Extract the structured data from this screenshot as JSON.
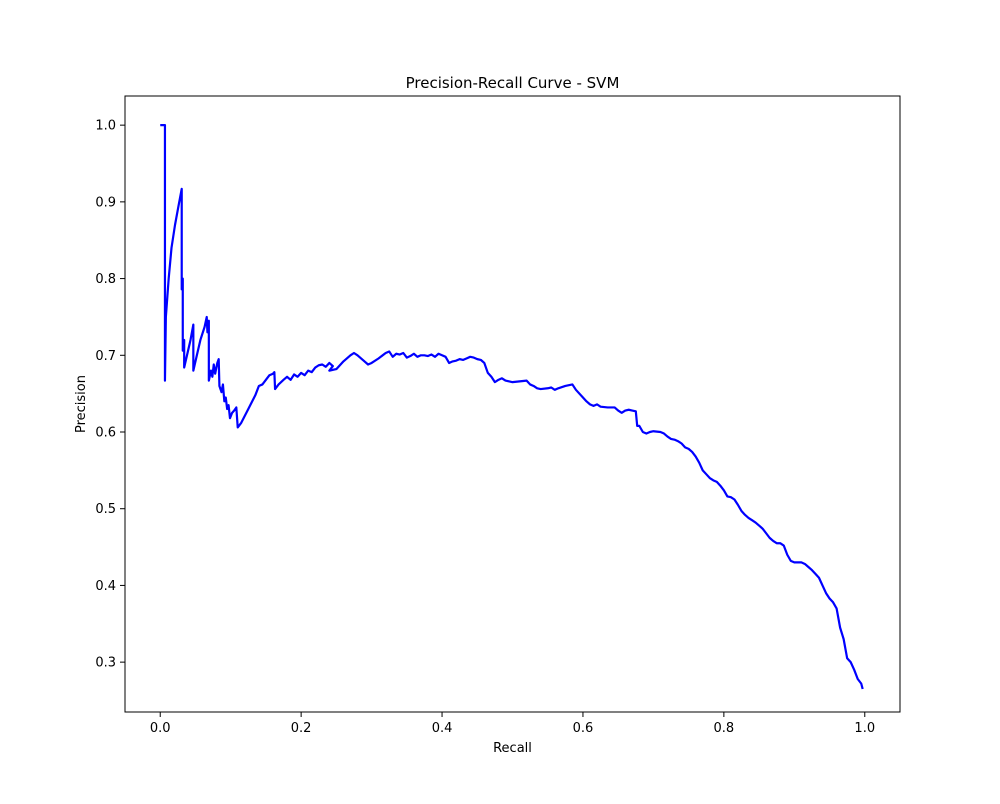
{
  "chart_data": {
    "type": "line",
    "title": "Precision-Recall Curve - SVM",
    "xlabel": "Recall",
    "ylabel": "Precision",
    "xlim": [
      -0.05,
      1.05
    ],
    "ylim": [
      0.235,
      1.038
    ],
    "xticks": [
      0.0,
      0.2,
      0.4,
      0.6,
      0.8,
      1.0
    ],
    "xtick_labels": [
      "0.0",
      "0.2",
      "0.4",
      "0.6",
      "0.8",
      "1.0"
    ],
    "yticks": [
      0.3,
      0.4,
      0.5,
      0.6,
      0.7,
      0.8,
      0.9,
      1.0
    ],
    "ytick_labels": [
      "0.3",
      "0.4",
      "0.5",
      "0.6",
      "0.7",
      "0.8",
      "0.9",
      "1.0"
    ],
    "grid": false,
    "legend": null,
    "series": [
      {
        "color": "#0000ff",
        "points": [
          [
            0.0,
            1.0
          ],
          [
            0.0067,
            1.0
          ],
          [
            0.0067,
            0.667
          ],
          [
            0.008,
            0.75
          ],
          [
            0.012,
            0.8
          ],
          [
            0.016,
            0.84
          ],
          [
            0.021,
            0.87
          ],
          [
            0.026,
            0.895
          ],
          [
            0.0305,
            0.917
          ],
          [
            0.0305,
            0.786
          ],
          [
            0.032,
            0.8
          ],
          [
            0.032,
            0.706
          ],
          [
            0.034,
            0.72
          ],
          [
            0.034,
            0.684
          ],
          [
            0.038,
            0.7
          ],
          [
            0.043,
            0.72
          ],
          [
            0.047,
            0.74
          ],
          [
            0.047,
            0.68
          ],
          [
            0.052,
            0.7
          ],
          [
            0.057,
            0.72
          ],
          [
            0.063,
            0.737
          ],
          [
            0.066,
            0.75
          ],
          [
            0.067,
            0.73
          ],
          [
            0.069,
            0.745
          ],
          [
            0.069,
            0.667
          ],
          [
            0.072,
            0.68
          ],
          [
            0.074,
            0.672
          ],
          [
            0.076,
            0.688
          ],
          [
            0.078,
            0.676
          ],
          [
            0.081,
            0.69
          ],
          [
            0.083,
            0.695
          ],
          [
            0.084,
            0.66
          ],
          [
            0.087,
            0.652
          ],
          [
            0.089,
            0.662
          ],
          [
            0.091,
            0.64
          ],
          [
            0.093,
            0.645
          ],
          [
            0.095,
            0.63
          ],
          [
            0.097,
            0.635
          ],
          [
            0.099,
            0.618
          ],
          [
            0.102,
            0.625
          ],
          [
            0.105,
            0.628
          ],
          [
            0.108,
            0.632
          ],
          [
            0.11,
            0.606
          ],
          [
            0.115,
            0.612
          ],
          [
            0.125,
            0.63
          ],
          [
            0.135,
            0.648
          ],
          [
            0.14,
            0.66
          ],
          [
            0.145,
            0.662
          ],
          [
            0.15,
            0.668
          ],
          [
            0.155,
            0.674
          ],
          [
            0.16,
            0.676
          ],
          [
            0.162,
            0.678
          ],
          [
            0.163,
            0.656
          ],
          [
            0.168,
            0.662
          ],
          [
            0.175,
            0.668
          ],
          [
            0.18,
            0.672
          ],
          [
            0.185,
            0.668
          ],
          [
            0.19,
            0.675
          ],
          [
            0.195,
            0.672
          ],
          [
            0.2,
            0.677
          ],
          [
            0.205,
            0.674
          ],
          [
            0.21,
            0.68
          ],
          [
            0.215,
            0.678
          ],
          [
            0.22,
            0.684
          ],
          [
            0.225,
            0.687
          ],
          [
            0.23,
            0.688
          ],
          [
            0.235,
            0.685
          ],
          [
            0.24,
            0.69
          ],
          [
            0.245,
            0.686
          ],
          [
            0.24,
            0.68
          ],
          [
            0.25,
            0.682
          ],
          [
            0.26,
            0.692
          ],
          [
            0.27,
            0.7
          ],
          [
            0.275,
            0.703
          ],
          [
            0.28,
            0.7
          ],
          [
            0.29,
            0.692
          ],
          [
            0.295,
            0.688
          ],
          [
            0.3,
            0.69
          ],
          [
            0.31,
            0.696
          ],
          [
            0.32,
            0.703
          ],
          [
            0.325,
            0.705
          ],
          [
            0.33,
            0.698
          ],
          [
            0.335,
            0.702
          ],
          [
            0.34,
            0.701
          ],
          [
            0.345,
            0.703
          ],
          [
            0.35,
            0.697
          ],
          [
            0.355,
            0.699
          ],
          [
            0.36,
            0.702
          ],
          [
            0.365,
            0.698
          ],
          [
            0.37,
            0.7
          ],
          [
            0.375,
            0.7
          ],
          [
            0.38,
            0.699
          ],
          [
            0.385,
            0.701
          ],
          [
            0.39,
            0.698
          ],
          [
            0.395,
            0.702
          ],
          [
            0.4,
            0.7
          ],
          [
            0.405,
            0.698
          ],
          [
            0.41,
            0.69
          ],
          [
            0.415,
            0.692
          ],
          [
            0.42,
            0.693
          ],
          [
            0.425,
            0.695
          ],
          [
            0.43,
            0.694
          ],
          [
            0.435,
            0.696
          ],
          [
            0.44,
            0.698
          ],
          [
            0.445,
            0.697
          ],
          [
            0.45,
            0.695
          ],
          [
            0.455,
            0.694
          ],
          [
            0.46,
            0.69
          ],
          [
            0.465,
            0.677
          ],
          [
            0.47,
            0.672
          ],
          [
            0.475,
            0.665
          ],
          [
            0.48,
            0.668
          ],
          [
            0.485,
            0.67
          ],
          [
            0.49,
            0.667
          ],
          [
            0.5,
            0.665
          ],
          [
            0.51,
            0.666
          ],
          [
            0.52,
            0.667
          ],
          [
            0.525,
            0.662
          ],
          [
            0.53,
            0.66
          ],
          [
            0.535,
            0.657
          ],
          [
            0.54,
            0.656
          ],
          [
            0.55,
            0.657
          ],
          [
            0.555,
            0.658
          ],
          [
            0.56,
            0.655
          ],
          [
            0.565,
            0.657
          ],
          [
            0.575,
            0.66
          ],
          [
            0.585,
            0.662
          ],
          [
            0.59,
            0.655
          ],
          [
            0.6,
            0.645
          ],
          [
            0.605,
            0.64
          ],
          [
            0.61,
            0.636
          ],
          [
            0.615,
            0.634
          ],
          [
            0.62,
            0.636
          ],
          [
            0.625,
            0.633
          ],
          [
            0.635,
            0.632
          ],
          [
            0.645,
            0.632
          ],
          [
            0.65,
            0.628
          ],
          [
            0.655,
            0.625
          ],
          [
            0.66,
            0.628
          ],
          [
            0.665,
            0.629
          ],
          [
            0.67,
            0.628
          ],
          [
            0.675,
            0.627
          ],
          [
            0.677,
            0.608
          ],
          [
            0.68,
            0.608
          ],
          [
            0.685,
            0.6
          ],
          [
            0.69,
            0.598
          ],
          [
            0.695,
            0.6
          ],
          [
            0.7,
            0.601
          ],
          [
            0.71,
            0.6
          ],
          [
            0.715,
            0.598
          ],
          [
            0.72,
            0.594
          ],
          [
            0.725,
            0.591
          ],
          [
            0.73,
            0.59
          ],
          [
            0.735,
            0.588
          ],
          [
            0.74,
            0.585
          ],
          [
            0.745,
            0.58
          ],
          [
            0.75,
            0.578
          ],
          [
            0.755,
            0.574
          ],
          [
            0.76,
            0.568
          ],
          [
            0.765,
            0.56
          ],
          [
            0.77,
            0.55
          ],
          [
            0.775,
            0.545
          ],
          [
            0.78,
            0.54
          ],
          [
            0.785,
            0.537
          ],
          [
            0.79,
            0.535
          ],
          [
            0.795,
            0.53
          ],
          [
            0.8,
            0.524
          ],
          [
            0.805,
            0.516
          ],
          [
            0.81,
            0.515
          ],
          [
            0.815,
            0.512
          ],
          [
            0.82,
            0.505
          ],
          [
            0.825,
            0.497
          ],
          [
            0.83,
            0.492
          ],
          [
            0.835,
            0.488
          ],
          [
            0.84,
            0.485
          ],
          [
            0.845,
            0.482
          ],
          [
            0.85,
            0.478
          ],
          [
            0.855,
            0.474
          ],
          [
            0.86,
            0.468
          ],
          [
            0.865,
            0.462
          ],
          [
            0.87,
            0.458
          ],
          [
            0.875,
            0.455
          ],
          [
            0.88,
            0.455
          ],
          [
            0.885,
            0.452
          ],
          [
            0.89,
            0.44
          ],
          [
            0.895,
            0.432
          ],
          [
            0.9,
            0.43
          ],
          [
            0.91,
            0.43
          ],
          [
            0.915,
            0.428
          ],
          [
            0.92,
            0.424
          ],
          [
            0.925,
            0.42
          ],
          [
            0.93,
            0.415
          ],
          [
            0.935,
            0.41
          ],
          [
            0.94,
            0.4
          ],
          [
            0.945,
            0.39
          ],
          [
            0.95,
            0.383
          ],
          [
            0.955,
            0.378
          ],
          [
            0.96,
            0.37
          ],
          [
            0.965,
            0.345
          ],
          [
            0.97,
            0.33
          ],
          [
            0.975,
            0.305
          ],
          [
            0.98,
            0.3
          ],
          [
            0.985,
            0.29
          ],
          [
            0.99,
            0.278
          ],
          [
            0.995,
            0.272
          ],
          [
            0.997,
            0.265
          ]
        ]
      }
    ]
  }
}
